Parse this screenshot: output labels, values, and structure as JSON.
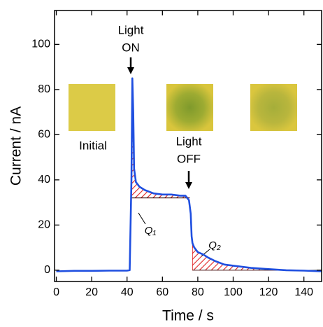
{
  "chart_data": {
    "type": "line",
    "x_label": "Time / s",
    "y_label": "Current / nA",
    "xlim": [
      -1,
      150
    ],
    "ylim": [
      -5,
      115
    ],
    "xticks": [
      0,
      20,
      40,
      60,
      80,
      100,
      120,
      140
    ],
    "yticks": [
      0,
      20,
      40,
      60,
      80,
      100
    ],
    "series": [
      {
        "color": "#1f4fe0",
        "x": [
          0,
          10,
          20,
          30,
          40,
          41.5,
          42.5,
          43,
          43.5,
          44,
          45,
          47,
          50,
          55,
          60,
          65,
          70,
          73,
          75,
          76,
          76.5,
          77,
          78,
          80,
          83,
          86,
          90,
          95,
          100,
          110,
          120,
          130,
          140,
          150
        ],
        "values": [
          -0.5,
          -0.3,
          -0.3,
          -0.2,
          -0.2,
          0,
          40,
          85,
          70,
          45,
          39,
          37,
          35.5,
          34,
          33.5,
          33.5,
          33,
          33,
          31,
          25,
          15,
          12,
          10,
          8,
          7,
          5.5,
          4,
          2.5,
          2,
          1,
          0.5,
          0,
          -0.2,
          -0.5
        ]
      }
    ],
    "shaded_regions": [
      {
        "label": "Q₁",
        "x_range": [
          42.5,
          75.5
        ],
        "baseline": 32
      },
      {
        "label": "Q₂",
        "x_range": [
          77,
          150
        ],
        "baseline": 0
      }
    ],
    "annotations": [
      {
        "text": [
          "Light",
          "ON"
        ]
      },
      {
        "text": [
          "Light",
          "OFF"
        ]
      },
      {
        "text": [
          "Initial"
        ]
      }
    ]
  }
}
